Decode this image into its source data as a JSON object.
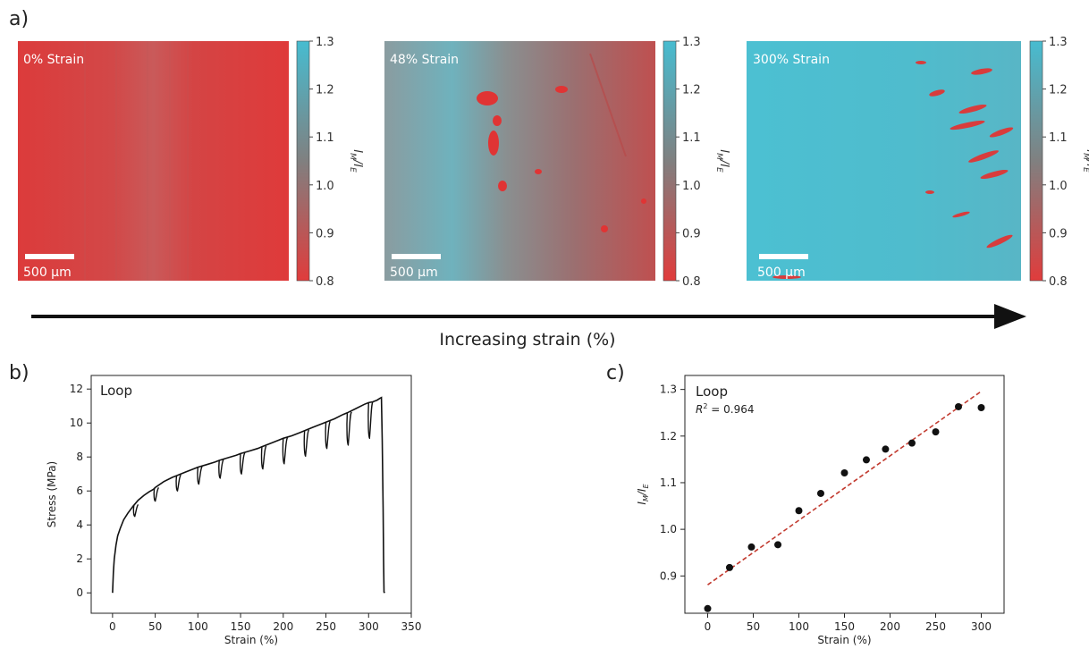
{
  "panel_labels": {
    "a": "a)",
    "b": "b)",
    "c": "c)"
  },
  "maps": [
    {
      "label": "0% Strain",
      "scalebar": "500 µm",
      "state": "low"
    },
    {
      "label": "48% Strain",
      "scalebar": "500 µm",
      "state": "mid"
    },
    {
      "label": "300% Strain",
      "scalebar": "500 µm",
      "state": "high"
    }
  ],
  "colorbar": {
    "ticks": [
      "1.3",
      "1.2",
      "1.1",
      "1.0",
      "0.9",
      "0.8"
    ],
    "label_main": "I",
    "label_sub1": "M",
    "label_sep": "/I",
    "label_sub2": "E",
    "colors": {
      "high": "#47bcd0",
      "mid": "#808080",
      "low": "#e03c3c"
    }
  },
  "arrow_label": "Increasing strain (%)",
  "chart_data": [
    {
      "id": "b",
      "type": "line",
      "annotation": "Loop",
      "xlabel": "Strain (%)",
      "ylabel": "Stress (MPa)",
      "xlim": [
        -25,
        350
      ],
      "ylim": [
        -1.2,
        12.8
      ],
      "xticks": [
        0,
        50,
        100,
        150,
        200,
        250,
        300,
        350
      ],
      "yticks": [
        0,
        2,
        4,
        6,
        8,
        10,
        12
      ],
      "loading_points": [
        [
          0,
          0
        ],
        [
          1,
          1.2
        ],
        [
          2,
          2.0
        ],
        [
          4,
          2.8
        ],
        [
          6,
          3.35
        ],
        [
          9,
          3.8
        ],
        [
          13,
          4.3
        ],
        [
          18,
          4.7
        ],
        [
          24,
          5.1
        ],
        [
          30,
          5.45
        ],
        [
          37,
          5.75
        ],
        [
          43,
          5.95
        ],
        [
          48,
          6.1
        ],
        [
          50,
          6.2
        ],
        [
          60,
          6.55
        ],
        [
          70,
          6.8
        ],
        [
          75,
          6.9
        ],
        [
          85,
          7.1
        ],
        [
          95,
          7.3
        ],
        [
          100,
          7.4
        ],
        [
          110,
          7.55
        ],
        [
          120,
          7.7
        ],
        [
          125,
          7.8
        ],
        [
          135,
          7.95
        ],
        [
          145,
          8.1
        ],
        [
          150,
          8.2
        ],
        [
          160,
          8.35
        ],
        [
          170,
          8.5
        ],
        [
          175,
          8.6
        ],
        [
          185,
          8.8
        ],
        [
          195,
          9.0
        ],
        [
          200,
          9.1
        ],
        [
          210,
          9.25
        ],
        [
          220,
          9.45
        ],
        [
          225,
          9.55
        ],
        [
          235,
          9.75
        ],
        [
          245,
          9.95
        ],
        [
          250,
          10.05
        ],
        [
          260,
          10.25
        ],
        [
          270,
          10.5
        ],
        [
          275,
          10.6
        ],
        [
          285,
          10.85
        ],
        [
          295,
          11.1
        ],
        [
          300,
          11.2
        ],
        [
          305,
          11.25
        ],
        [
          310,
          11.35
        ],
        [
          313,
          11.45
        ],
        [
          315,
          11.5
        ],
        [
          316,
          9.0
        ],
        [
          317,
          5.0
        ],
        [
          317.5,
          2.0
        ],
        [
          318,
          0.05
        ],
        [
          319,
          0.0
        ]
      ],
      "loops": [
        {
          "x": 25,
          "peak": 5.15,
          "drop": 4.5
        },
        {
          "x": 49,
          "peak": 6.15,
          "drop": 5.4
        },
        {
          "x": 75,
          "peak": 6.9,
          "drop": 6.0
        },
        {
          "x": 100,
          "peak": 7.4,
          "drop": 6.4
        },
        {
          "x": 125,
          "peak": 7.8,
          "drop": 6.75
        },
        {
          "x": 150,
          "peak": 8.2,
          "drop": 7.0
        },
        {
          "x": 175,
          "peak": 8.6,
          "drop": 7.3
        },
        {
          "x": 200,
          "peak": 9.1,
          "drop": 7.6
        },
        {
          "x": 225,
          "peak": 9.55,
          "drop": 8.05
        },
        {
          "x": 250,
          "peak": 10.05,
          "drop": 8.5
        },
        {
          "x": 275,
          "peak": 10.6,
          "drop": 8.7
        },
        {
          "x": 300,
          "peak": 11.2,
          "drop": 9.1
        }
      ]
    },
    {
      "id": "c",
      "type": "scatter",
      "annotation": "Loop",
      "r2_label": "= 0.964",
      "xlabel": "Strain (%)",
      "ylabel_main": "I",
      "ylabel_sub1": "M",
      "ylabel_sep": "/I",
      "ylabel_sub2": "E",
      "xlim": [
        -25,
        325
      ],
      "ylim": [
        0.82,
        1.33
      ],
      "xticks": [
        0,
        50,
        100,
        150,
        200,
        250,
        300
      ],
      "yticks": [
        0.9,
        1.0,
        1.1,
        1.2,
        1.3
      ],
      "ytick_labels": [
        "0.9",
        "1.0",
        "1.1",
        "1.2",
        "1.3"
      ],
      "points": [
        [
          0,
          0.83
        ],
        [
          24,
          0.918
        ],
        [
          48,
          0.962
        ],
        [
          77,
          0.967
        ],
        [
          100,
          1.04
        ],
        [
          124,
          1.077
        ],
        [
          150,
          1.121
        ],
        [
          174,
          1.149
        ],
        [
          195,
          1.172
        ],
        [
          224,
          1.185
        ],
        [
          250,
          1.209
        ],
        [
          275,
          1.263
        ],
        [
          300,
          1.261
        ]
      ],
      "fit": [
        [
          0,
          0.881
        ],
        [
          300,
          1.296
        ]
      ]
    }
  ]
}
